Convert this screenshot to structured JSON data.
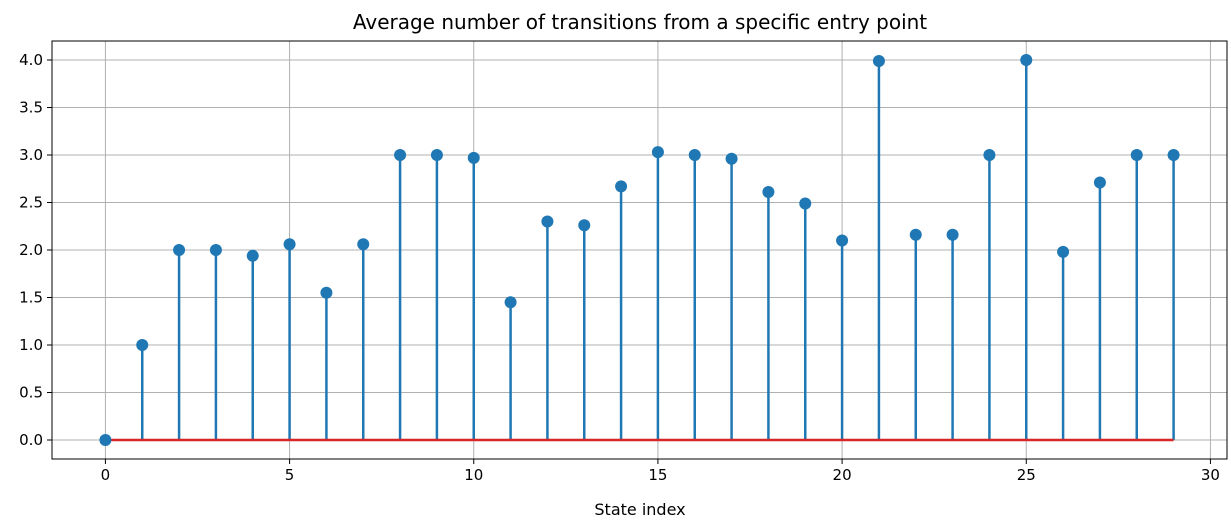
{
  "chart_data": {
    "type": "stem",
    "title": "Average number of transitions from a specific entry point",
    "xlabel": "State index",
    "ylabel": "",
    "x": [
      0,
      1,
      2,
      3,
      4,
      5,
      6,
      7,
      8,
      9,
      10,
      11,
      12,
      13,
      14,
      15,
      16,
      17,
      18,
      19,
      20,
      21,
      22,
      23,
      24,
      25,
      26,
      27,
      28,
      29
    ],
    "values": [
      0.0,
      1.0,
      2.0,
      2.0,
      1.94,
      2.06,
      1.55,
      2.06,
      3.0,
      3.0,
      2.97,
      1.45,
      2.3,
      2.26,
      2.67,
      3.03,
      3.0,
      2.96,
      2.61,
      2.49,
      2.1,
      3.99,
      2.16,
      2.16,
      3.0,
      4.0,
      1.98,
      2.71,
      3.0,
      3.0
    ],
    "xlim": [
      -1.45,
      30.45
    ],
    "ylim": [
      -0.2,
      4.2
    ],
    "xticks": [
      0,
      5,
      10,
      15,
      20,
      25,
      30
    ],
    "xtick_labels": [
      "0",
      "5",
      "10",
      "15",
      "20",
      "25",
      "30"
    ],
    "yticks": [
      0.0,
      0.5,
      1.0,
      1.5,
      2.0,
      2.5,
      3.0,
      3.5,
      4.0
    ],
    "ytick_labels": [
      "0.0",
      "0.5",
      "1.0",
      "1.5",
      "2.0",
      "2.5",
      "3.0",
      "3.5",
      "4.0"
    ],
    "grid": true,
    "colors": {
      "stem": "#1f77b4",
      "baseline": "#d62728",
      "grid": "#b0b0b0"
    }
  }
}
